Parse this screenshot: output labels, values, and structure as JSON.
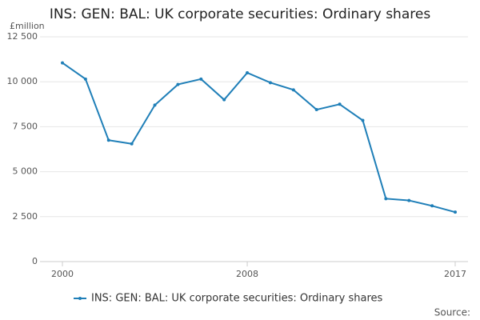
{
  "chart_data": {
    "type": "line",
    "title": "INS: GEN: BAL: UK corporate securities: Ordinary shares",
    "y_label": "£million",
    "source": "Source:",
    "x": [
      2000,
      2001,
      2002,
      2003,
      2004,
      2005,
      2006,
      2007,
      2008,
      2009,
      2010,
      2011,
      2012,
      2013,
      2014,
      2015,
      2016,
      2017
    ],
    "series": [
      {
        "name": "INS: GEN: BAL: UK corporate securities: Ordinary shares",
        "color": "#1f7fb8",
        "values": [
          11050,
          10150,
          6750,
          6550,
          8700,
          9850,
          10150,
          9000,
          10500,
          9950,
          9550,
          8450,
          8750,
          7850,
          3500,
          3400,
          3100,
          2750
        ]
      }
    ],
    "xlim": [
      2000,
      2017
    ],
    "xticks": [
      2000,
      2008,
      2017
    ],
    "ylim": [
      0,
      12500
    ],
    "yticks": [
      0,
      {
        "value": 2500,
        "label": "2 500"
      },
      {
        "value": 5000,
        "label": "5 000"
      },
      {
        "value": 7500,
        "label": "7 500"
      },
      {
        "value": 10000,
        "label": "10 000"
      },
      {
        "value": 12500,
        "label": "12 500"
      }
    ],
    "grid": true,
    "legend": "bottom"
  }
}
